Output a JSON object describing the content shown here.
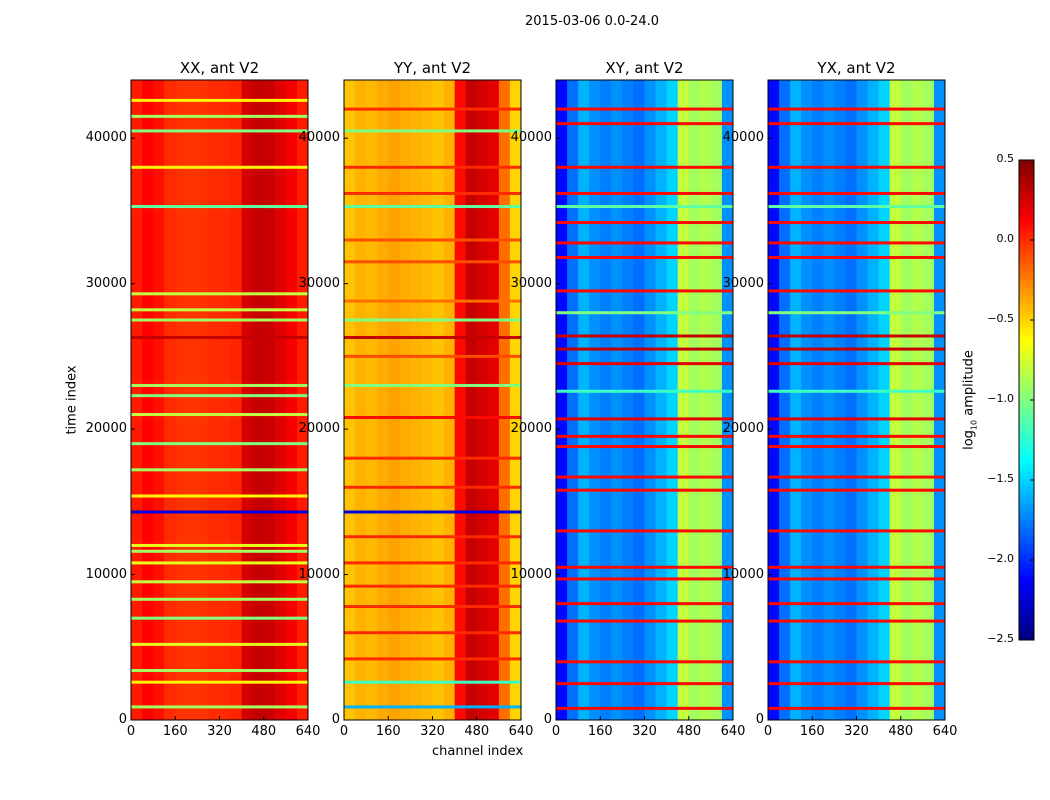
{
  "chart_data": {
    "type": "heatmap",
    "suptitle": "2015-03-06 0.0-24.0",
    "xlabel": "channel index",
    "ylabel": "time index",
    "xlim": [
      0,
      640
    ],
    "ylim": [
      0,
      44000
    ],
    "xticks": [
      "0",
      "160",
      "320",
      "480",
      "640"
    ],
    "xtick_values": [
      0,
      160,
      320,
      480,
      640
    ],
    "yticks": [
      "0",
      "10000",
      "20000",
      "30000",
      "40000"
    ],
    "ytick_values": [
      0,
      10000,
      20000,
      30000,
      40000
    ],
    "colorbar": {
      "label_prefix": "log",
      "label_sub": "10",
      "label_suffix": " amplitude",
      "range": [
        -2.5,
        0.5
      ],
      "colormap": "jet",
      "ticks": [
        "0.5",
        "0.0",
        "−0.5",
        "−1.0",
        "−1.5",
        "−2.0",
        "−2.5"
      ],
      "tick_values": [
        0.5,
        0.0,
        -0.5,
        -1.0,
        -1.5,
        -2.0,
        -2.5
      ]
    },
    "channel_bin_width": 40,
    "panels": [
      {
        "title": "XX, ant V2",
        "channel_profile_log_amp": [
          0.05,
          0.12,
          0.08,
          0.0,
          -0.02,
          -0.03,
          -0.02,
          0.0,
          0.0,
          0.02,
          0.25,
          0.3,
          0.28,
          0.22,
          0.15,
          0.05
        ],
        "flag_rows": [
          [
            900,
            -0.9
          ],
          [
            2600,
            -0.6
          ],
          [
            3400,
            -0.9
          ],
          [
            5200,
            -0.7
          ],
          [
            7000,
            -1.0
          ],
          [
            8300,
            -0.9
          ],
          [
            9500,
            -0.8
          ],
          [
            10800,
            -0.7
          ],
          [
            11600,
            -0.9
          ],
          [
            12000,
            -0.7
          ],
          [
            14300,
            -2.2
          ],
          [
            15400,
            -0.6
          ],
          [
            17200,
            -0.9
          ],
          [
            19000,
            -1.0
          ],
          [
            21000,
            -0.8
          ],
          [
            22300,
            -1.0
          ],
          [
            23000,
            -0.9
          ],
          [
            26300,
            0.3
          ],
          [
            27500,
            -0.9
          ],
          [
            28200,
            -0.8
          ],
          [
            29300,
            -0.8
          ],
          [
            35300,
            -1.1
          ],
          [
            38000,
            -0.6
          ],
          [
            40500,
            -1.0
          ],
          [
            41500,
            -0.9
          ],
          [
            42600,
            -0.6
          ]
        ]
      },
      {
        "title": "YY, ant V2",
        "channel_profile_log_amp": [
          -0.45,
          -0.4,
          -0.42,
          -0.38,
          -0.35,
          -0.38,
          -0.4,
          -0.42,
          -0.45,
          -0.4,
          0.1,
          0.3,
          0.25,
          0.2,
          -0.2,
          -0.5
        ],
        "flag_rows": [
          [
            900,
            -1.6
          ],
          [
            2600,
            -1.2
          ],
          [
            4200,
            0.0
          ],
          [
            6000,
            0.0
          ],
          [
            7800,
            0.0
          ],
          [
            9200,
            0.0
          ],
          [
            10800,
            0.0
          ],
          [
            12600,
            0.0
          ],
          [
            14300,
            -2.2
          ],
          [
            16000,
            0.0
          ],
          [
            18000,
            0.0
          ],
          [
            20800,
            0.1
          ],
          [
            23000,
            -1.0
          ],
          [
            25000,
            -0.1
          ],
          [
            26300,
            0.3
          ],
          [
            27500,
            -1.0
          ],
          [
            28800,
            -0.2
          ],
          [
            31500,
            -0.1
          ],
          [
            33000,
            -0.1
          ],
          [
            35300,
            -1.1
          ],
          [
            36200,
            0.0
          ],
          [
            38000,
            0.0
          ],
          [
            40500,
            -1.0
          ],
          [
            42000,
            0.0
          ]
        ]
      },
      {
        "title": "XY, ant V2",
        "channel_profile_log_amp": [
          -2.1,
          -1.8,
          -1.6,
          -1.7,
          -1.75,
          -1.7,
          -1.75,
          -1.8,
          -1.7,
          -1.6,
          -1.5,
          -0.8,
          -0.9,
          -0.85,
          -0.9,
          -1.7
        ],
        "flag_rows": [
          [
            800,
            0.1
          ],
          [
            2500,
            0.1
          ],
          [
            4000,
            0.1
          ],
          [
            6800,
            0.1
          ],
          [
            8000,
            0.1
          ],
          [
            9700,
            0.1
          ],
          [
            10500,
            0.1
          ],
          [
            13000,
            0.1
          ],
          [
            15800,
            0.1
          ],
          [
            16700,
            0.1
          ],
          [
            18800,
            0.1
          ],
          [
            19500,
            0.1
          ],
          [
            20700,
            0.2
          ],
          [
            22600,
            -1.2
          ],
          [
            24500,
            0.2
          ],
          [
            25500,
            0.3
          ],
          [
            26400,
            0.3
          ],
          [
            28000,
            -1.0
          ],
          [
            29500,
            0.1
          ],
          [
            31800,
            0.1
          ],
          [
            32800,
            0.1
          ],
          [
            34200,
            0.1
          ],
          [
            35300,
            -1.1
          ],
          [
            36200,
            0.1
          ],
          [
            38000,
            0.1
          ],
          [
            41000,
            0.1
          ],
          [
            42000,
            0.1
          ]
        ]
      },
      {
        "title": "YX, ant V2",
        "channel_profile_log_amp": [
          -2.1,
          -1.8,
          -1.6,
          -1.7,
          -1.75,
          -1.7,
          -1.75,
          -1.8,
          -1.7,
          -1.6,
          -1.5,
          -0.8,
          -0.9,
          -0.85,
          -0.9,
          -1.7
        ],
        "flag_rows": [
          [
            800,
            0.1
          ],
          [
            2500,
            0.1
          ],
          [
            4000,
            0.1
          ],
          [
            6800,
            0.1
          ],
          [
            8000,
            0.1
          ],
          [
            9700,
            0.1
          ],
          [
            10500,
            0.1
          ],
          [
            13000,
            0.1
          ],
          [
            15800,
            0.1
          ],
          [
            16700,
            0.1
          ],
          [
            18800,
            0.1
          ],
          [
            19500,
            0.1
          ],
          [
            20700,
            0.2
          ],
          [
            22600,
            -1.2
          ],
          [
            24500,
            0.2
          ],
          [
            25500,
            0.3
          ],
          [
            26400,
            0.3
          ],
          [
            28000,
            -1.0
          ],
          [
            29500,
            0.1
          ],
          [
            31800,
            0.1
          ],
          [
            32800,
            0.1
          ],
          [
            34200,
            0.1
          ],
          [
            35300,
            -1.1
          ],
          [
            36200,
            0.1
          ],
          [
            38000,
            0.1
          ],
          [
            41000,
            0.1
          ],
          [
            42000,
            0.1
          ]
        ]
      }
    ]
  }
}
